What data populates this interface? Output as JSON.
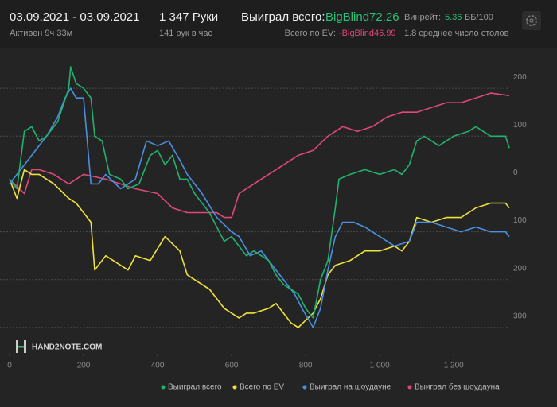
{
  "header": {
    "date_range": "03.09.2021 - 03.09.2021",
    "active": "Активен 9ч 33м",
    "hands": "1 347 Руки",
    "hands_per_hour": "141 рук в час",
    "won_label": "Выиграл всего:",
    "won_value": "BigBlind72.26",
    "ev_label": "Всего по EV:",
    "ev_value": "-BigBlind46.99",
    "winrate_label": "Винрейт:",
    "winrate_value": "5.36",
    "winrate_unit": "ББ/100",
    "tables": "1.8 среднее число столов"
  },
  "chart_data": {
    "type": "line",
    "logo": "HAND2NOTE.COM",
    "xlim": [
      0,
      1350
    ],
    "ylim": [
      -355,
      285
    ],
    "xticks": [
      0,
      200,
      400,
      600,
      800,
      {
        "value": 1000,
        "label": "1 000"
      },
      {
        "value": 1200,
        "label": "1 200"
      }
    ],
    "yticks": [
      {
        "value": -300,
        "label": "300"
      },
      {
        "value": -200,
        "label": "200"
      },
      {
        "value": -100,
        "label": "100"
      },
      0,
      100,
      200
    ],
    "grid": true,
    "series": [
      {
        "name": "Выиграл всего",
        "color": "#1fb36f",
        "x": [
          0,
          20,
          40,
          60,
          80,
          100,
          130,
          160,
          165,
          180,
          200,
          220,
          230,
          250,
          270,
          300,
          320,
          350,
          380,
          400,
          420,
          440,
          460,
          480,
          500,
          520,
          540,
          560,
          580,
          600,
          620,
          640,
          660,
          680,
          700,
          720,
          740,
          760,
          780,
          800,
          820,
          840,
          860,
          880,
          890,
          920,
          960,
          1000,
          1040,
          1060,
          1080,
          1100,
          1120,
          1160,
          1200,
          1240,
          1260,
          1300,
          1340,
          1350
        ],
        "values": [
          10,
          -10,
          110,
          120,
          90,
          100,
          130,
          200,
          245,
          210,
          200,
          180,
          100,
          90,
          20,
          10,
          -10,
          0,
          60,
          70,
          40,
          60,
          10,
          10,
          -20,
          -40,
          -60,
          -90,
          -120,
          -110,
          -130,
          -150,
          -140,
          -150,
          -160,
          -190,
          -210,
          -220,
          -230,
          -260,
          -280,
          -200,
          -160,
          -50,
          10,
          20,
          30,
          20,
          30,
          20,
          40,
          90,
          100,
          80,
          100,
          110,
          120,
          100,
          100,
          75
        ]
      },
      {
        "name": "Всего по EV",
        "color": "#f0e23c",
        "x": [
          0,
          20,
          40,
          60,
          80,
          120,
          160,
          180,
          200,
          220,
          230,
          260,
          300,
          320,
          340,
          380,
          420,
          460,
          480,
          500,
          540,
          560,
          580,
          620,
          640,
          660,
          700,
          720,
          760,
          780,
          820,
          840,
          860,
          880,
          920,
          960,
          1000,
          1040,
          1060,
          1080,
          1100,
          1140,
          1180,
          1220,
          1260,
          1300,
          1340,
          1350
        ],
        "values": [
          10,
          -30,
          30,
          20,
          20,
          0,
          -30,
          -40,
          -60,
          -80,
          -180,
          -150,
          -170,
          -180,
          -150,
          -160,
          -110,
          -140,
          -190,
          -200,
          -220,
          -240,
          -260,
          -280,
          -270,
          -270,
          -260,
          -250,
          -290,
          -300,
          -270,
          -240,
          -190,
          -170,
          -160,
          -140,
          -140,
          -130,
          -140,
          -120,
          -70,
          -80,
          -70,
          -70,
          -50,
          -40,
          -40,
          -50
        ]
      },
      {
        "name": "Выиграл на шоудауне",
        "color": "#4a90e2",
        "x": [
          0,
          20,
          60,
          100,
          130,
          150,
          165,
          180,
          200,
          220,
          240,
          260,
          300,
          340,
          370,
          400,
          430,
          460,
          480,
          500,
          520,
          560,
          600,
          620,
          650,
          680,
          700,
          740,
          770,
          790,
          820,
          840,
          860,
          880,
          900,
          930,
          960,
          1000,
          1040,
          1080,
          1100,
          1140,
          1180,
          1220,
          1260,
          1300,
          1340,
          1350
        ],
        "values": [
          0,
          20,
          60,
          100,
          140,
          180,
          200,
          180,
          180,
          0,
          0,
          20,
          -10,
          10,
          90,
          80,
          90,
          50,
          20,
          0,
          -20,
          -70,
          -100,
          -110,
          -150,
          -140,
          -160,
          -200,
          -230,
          -260,
          -300,
          -260,
          -180,
          -110,
          -80,
          -80,
          -90,
          -110,
          -130,
          -120,
          -80,
          -80,
          -90,
          -100,
          -90,
          -100,
          -100,
          -110
        ]
      },
      {
        "name": "Выиграл без шоудауна",
        "color": "#e0477c",
        "x": [
          0,
          40,
          60,
          80,
          120,
          160,
          200,
          260,
          300,
          340,
          400,
          440,
          480,
          520,
          560,
          580,
          600,
          620,
          660,
          700,
          740,
          780,
          820,
          860,
          900,
          940,
          980,
          1020,
          1060,
          1100,
          1140,
          1180,
          1220,
          1260,
          1300,
          1350
        ],
        "values": [
          10,
          -20,
          30,
          30,
          20,
          0,
          20,
          10,
          0,
          -10,
          -20,
          -50,
          -60,
          -60,
          -60,
          -70,
          -70,
          -20,
          0,
          20,
          40,
          60,
          70,
          100,
          120,
          110,
          120,
          140,
          150,
          150,
          160,
          170,
          170,
          180,
          190,
          185
        ]
      }
    ]
  }
}
